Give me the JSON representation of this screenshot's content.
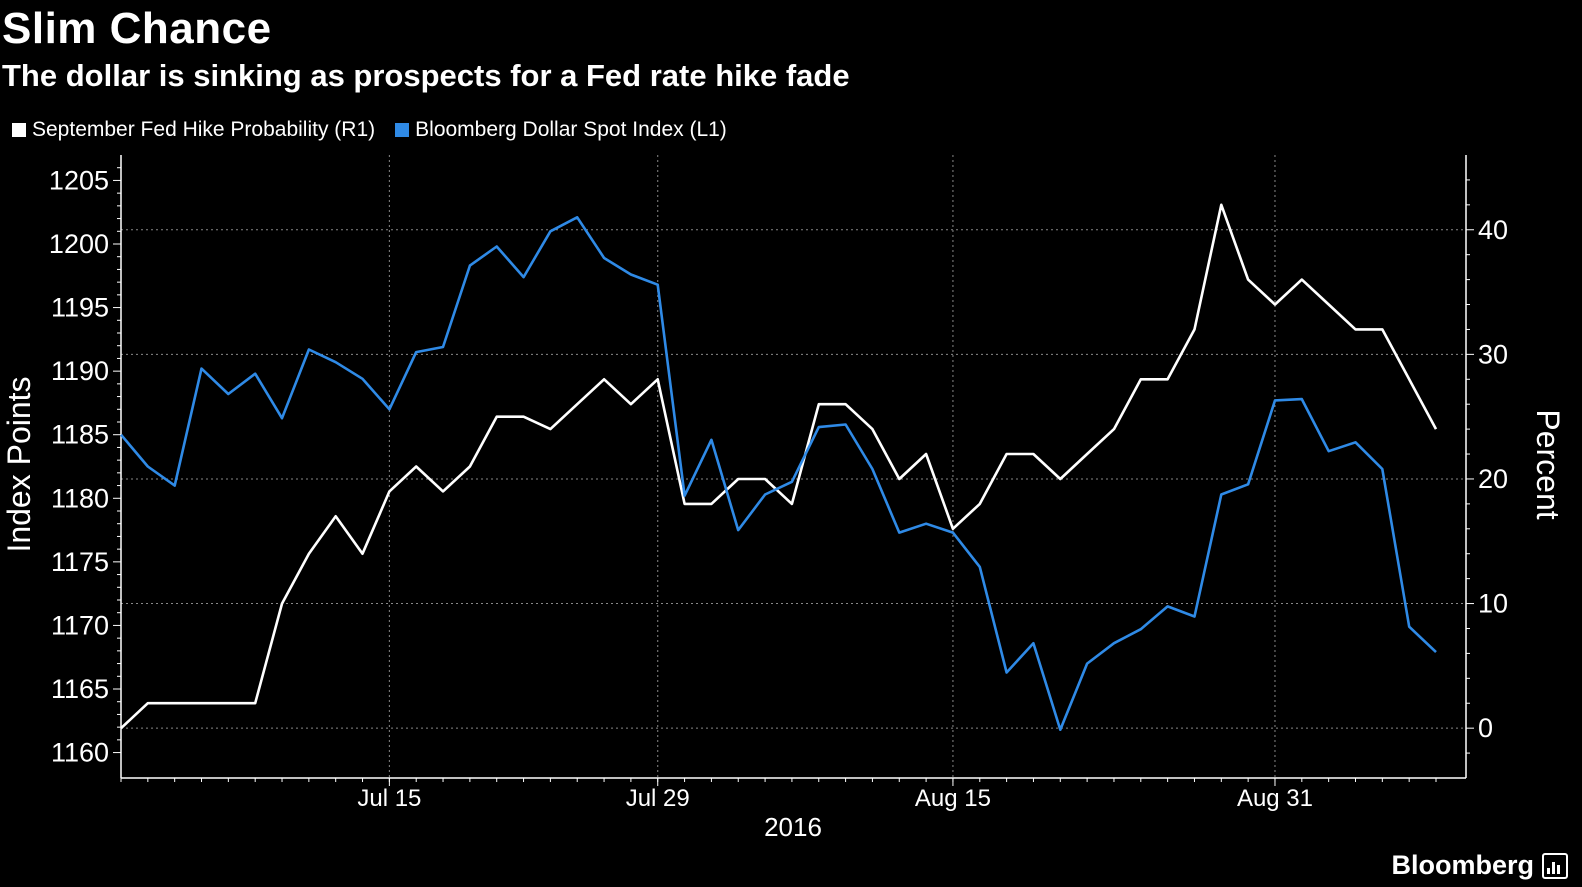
{
  "title": "Slim Chance",
  "subtitle": "The dollar is sinking as prospects for a Fed rate hike fade",
  "brand": "Bloomberg",
  "colors": {
    "background": "#000000",
    "series1": "#ffffff",
    "series2": "#2f8ae6",
    "grid": "#888888"
  },
  "chart_data": {
    "type": "line",
    "xlabel": "2016",
    "x_ticks": [
      "Jul 15",
      "Jul 29",
      "Aug 15",
      "Aug 31"
    ],
    "dates": [
      "Jul 1",
      "Jul 4",
      "Jul 5",
      "Jul 6",
      "Jul 7",
      "Jul 8",
      "Jul 11",
      "Jul 12",
      "Jul 13",
      "Jul 14",
      "Jul 15",
      "Jul 18",
      "Jul 19",
      "Jul 20",
      "Jul 21",
      "Jul 22",
      "Jul 25",
      "Jul 26",
      "Jul 27",
      "Jul 28",
      "Jul 29",
      "Aug 1",
      "Aug 2",
      "Aug 3",
      "Aug 4",
      "Aug 5",
      "Aug 8",
      "Aug 9",
      "Aug 10",
      "Aug 11",
      "Aug 12",
      "Aug 15",
      "Aug 16",
      "Aug 17",
      "Aug 18",
      "Aug 19",
      "Aug 22",
      "Aug 23",
      "Aug 24",
      "Aug 25",
      "Aug 26",
      "Aug 29",
      "Aug 30",
      "Aug 31",
      "Sep 1",
      "Sep 2",
      "Sep 5",
      "Sep 6",
      "Sep 7",
      "Sep 8"
    ],
    "left_axis": {
      "label": "Index Points",
      "ylim": [
        1158,
        1207
      ],
      "ticks": [
        1160,
        1165,
        1170,
        1175,
        1180,
        1185,
        1190,
        1195,
        1200,
        1205
      ]
    },
    "right_axis": {
      "label": "Percent",
      "ylim": [
        -4,
        46
      ],
      "ticks": [
        0,
        10,
        20,
        30,
        40
      ]
    },
    "series": [
      {
        "name": "September Fed Hike Probability  (R1)",
        "axis": "right",
        "values": [
          0,
          2,
          2,
          2,
          2,
          2,
          10,
          14,
          17,
          14,
          19,
          21,
          19,
          21,
          25,
          25,
          24,
          26,
          28,
          26,
          28,
          18,
          18,
          20,
          20,
          18,
          26,
          26,
          24,
          20,
          22,
          16,
          18,
          22,
          22,
          20,
          22,
          24,
          28,
          28,
          32,
          42,
          36,
          34,
          36,
          34,
          32,
          32,
          28,
          24
        ]
      },
      {
        "name": "Bloomberg Dollar Spot Index (L1)",
        "axis": "left",
        "values": [
          1185,
          1182.5,
          1181,
          1190.2,
          1188.2,
          1189.8,
          1186.3,
          1191.7,
          1190.7,
          1189.4,
          1187,
          1191.5,
          1191.9,
          1198.3,
          1199.8,
          1197.4,
          1201,
          1202.1,
          1198.9,
          1197.6,
          1196.8,
          1180.2,
          1184.6,
          1177.5,
          1180.3,
          1181.3,
          1185.6,
          1185.8,
          1182.3,
          1177.3,
          1178,
          1177.3,
          1174.6,
          1166.3,
          1168.6,
          1161.8,
          1167,
          1168.6,
          1169.7,
          1171.5,
          1170.7,
          1180.3,
          1181.1,
          1187.7,
          1187.8,
          1183.7,
          1184.4,
          1182.3,
          1169.9,
          1167.9
        ]
      }
    ]
  }
}
